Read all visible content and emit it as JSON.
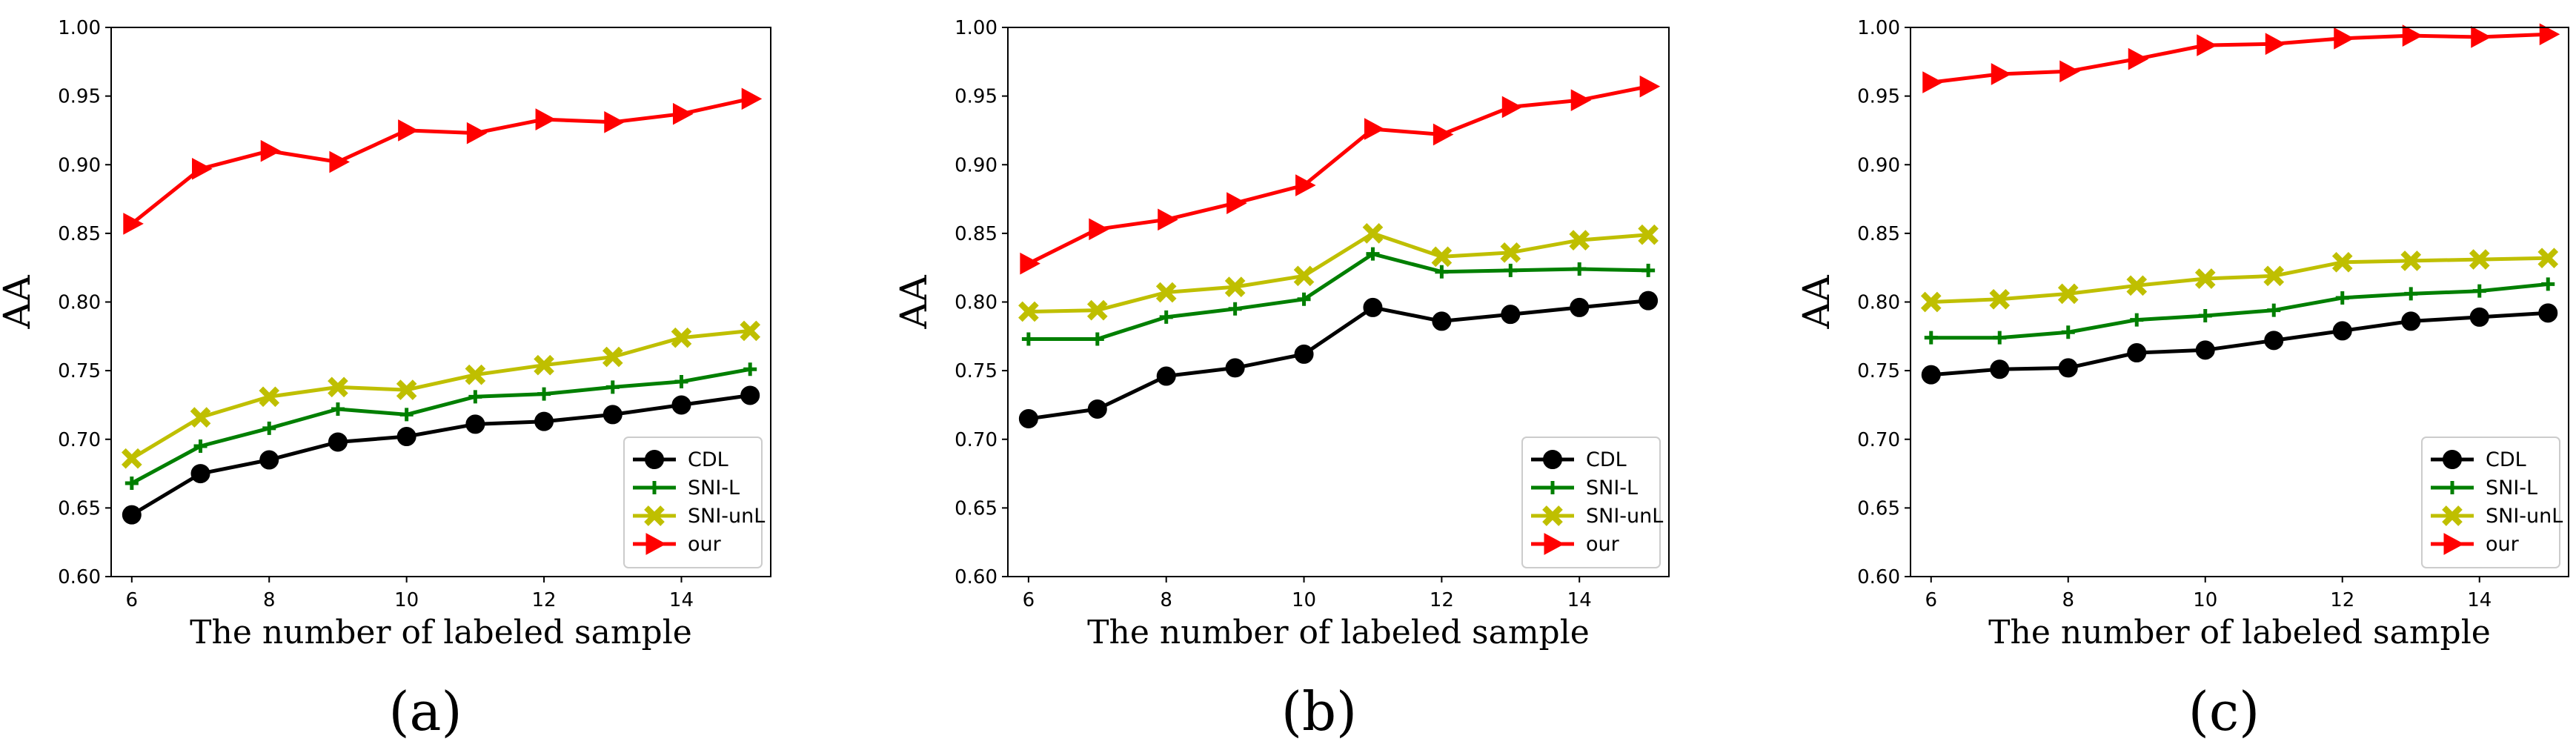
{
  "colors": {
    "CDL": "#000000",
    "SNI-L": "#007f00",
    "SNI-unL": "#bfbf00",
    "our": "#ff0000"
  },
  "markers": {
    "CDL": "circle",
    "SNI-L": "plus",
    "SNI-unL": "x",
    "our": "triangle-right"
  },
  "chart_data": [
    {
      "type": "line",
      "panel_label": "(a)",
      "xlabel": "The number of labeled sample",
      "ylabel": "AA",
      "x": [
        6,
        7,
        8,
        9,
        10,
        11,
        12,
        13,
        14,
        15
      ],
      "xticks": [
        "6",
        "8",
        "10",
        "12",
        "14"
      ],
      "yticks": [
        "0.60",
        "0.65",
        "0.70",
        "0.75",
        "0.80",
        "0.85",
        "0.90",
        "0.95",
        "1.00"
      ],
      "xlim": [
        5.7,
        15.3
      ],
      "ylim": [
        0.6,
        1.0
      ],
      "legend_position": "lower-right",
      "series": [
        {
          "name": "CDL",
          "values": [
            0.645,
            0.675,
            0.685,
            0.698,
            0.702,
            0.711,
            0.713,
            0.718,
            0.725,
            0.732
          ]
        },
        {
          "name": "SNI-L",
          "values": [
            0.668,
            0.695,
            0.708,
            0.722,
            0.718,
            0.731,
            0.733,
            0.738,
            0.742,
            0.751
          ]
        },
        {
          "name": "SNI-unL",
          "values": [
            0.686,
            0.716,
            0.731,
            0.738,
            0.736,
            0.747,
            0.754,
            0.76,
            0.774,
            0.779
          ]
        },
        {
          "name": "our",
          "values": [
            0.857,
            0.897,
            0.91,
            0.902,
            0.925,
            0.923,
            0.933,
            0.931,
            0.937,
            0.948
          ]
        }
      ]
    },
    {
      "type": "line",
      "panel_label": "(b)",
      "xlabel": "The number of labeled sample",
      "ylabel": "AA",
      "x": [
        6,
        7,
        8,
        9,
        10,
        11,
        12,
        13,
        14,
        15
      ],
      "xticks": [
        "6",
        "8",
        "10",
        "12",
        "14"
      ],
      "yticks": [
        "0.60",
        "0.65",
        "0.70",
        "0.75",
        "0.80",
        "0.85",
        "0.90",
        "0.95",
        "1.00"
      ],
      "xlim": [
        5.7,
        15.3
      ],
      "ylim": [
        0.6,
        1.0
      ],
      "legend_position": "lower-right",
      "series": [
        {
          "name": "CDL",
          "values": [
            0.715,
            0.722,
            0.746,
            0.752,
            0.762,
            0.796,
            0.786,
            0.791,
            0.796,
            0.801
          ]
        },
        {
          "name": "SNI-L",
          "values": [
            0.773,
            0.773,
            0.789,
            0.795,
            0.802,
            0.835,
            0.822,
            0.823,
            0.824,
            0.823
          ]
        },
        {
          "name": "SNI-unL",
          "values": [
            0.793,
            0.794,
            0.807,
            0.811,
            0.819,
            0.85,
            0.833,
            0.836,
            0.845,
            0.849
          ]
        },
        {
          "name": "our",
          "values": [
            0.828,
            0.853,
            0.86,
            0.872,
            0.885,
            0.926,
            0.922,
            0.942,
            0.947,
            0.957
          ]
        }
      ]
    },
    {
      "type": "line",
      "panel_label": "(c)",
      "xlabel": "The number of labeled sample",
      "ylabel": "AA",
      "x": [
        6,
        7,
        8,
        9,
        10,
        11,
        12,
        13,
        14,
        15
      ],
      "xticks": [
        "6",
        "8",
        "10",
        "12",
        "14"
      ],
      "yticks": [
        "0.60",
        "0.65",
        "0.70",
        "0.75",
        "0.80",
        "0.85",
        "0.90",
        "0.95",
        "1.00"
      ],
      "xlim": [
        5.7,
        15.3
      ],
      "ylim": [
        0.6,
        1.0
      ],
      "legend_position": "lower-right",
      "series": [
        {
          "name": "CDL",
          "values": [
            0.747,
            0.751,
            0.752,
            0.763,
            0.765,
            0.772,
            0.779,
            0.786,
            0.789,
            0.792
          ]
        },
        {
          "name": "SNI-L",
          "values": [
            0.774,
            0.774,
            0.778,
            0.787,
            0.79,
            0.794,
            0.803,
            0.806,
            0.808,
            0.813
          ]
        },
        {
          "name": "SNI-unL",
          "values": [
            0.8,
            0.802,
            0.806,
            0.812,
            0.817,
            0.819,
            0.829,
            0.83,
            0.831,
            0.832
          ]
        },
        {
          "name": "our",
          "values": [
            0.96,
            0.966,
            0.968,
            0.977,
            0.987,
            0.988,
            0.992,
            0.994,
            0.993,
            0.995
          ]
        }
      ]
    }
  ]
}
